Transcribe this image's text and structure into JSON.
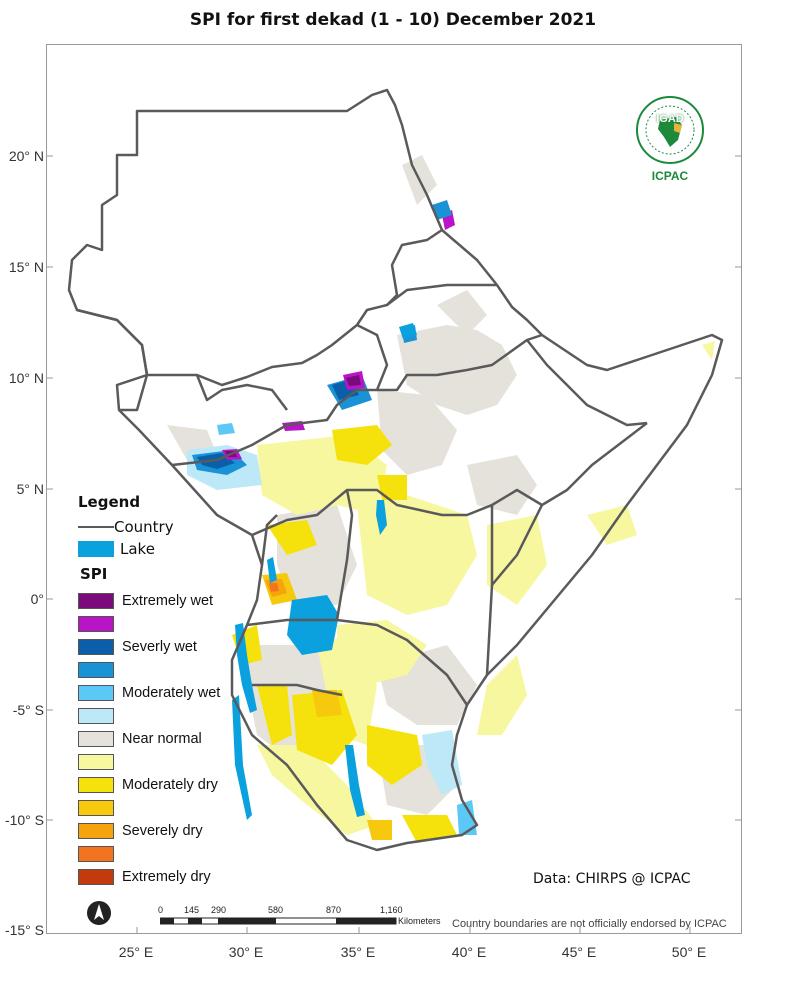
{
  "map": {
    "title": "SPI   for   first dekad (1 - 10) December 2021",
    "lat_labels": [
      "20° N",
      "15° N",
      "10° N",
      "5° N",
      "0°",
      "-5° S",
      "-10° S",
      "-15° S"
    ],
    "lon_labels": [
      "25° E",
      "30° E",
      "35° E",
      "40° E",
      "45° E",
      "50° E"
    ],
    "credit": "Data: CHIRPS @ ICPAC",
    "disclaimer": "Country boundaries are not officially endorsed by ICPAC",
    "logo": {
      "text": "IGAD",
      "org": "ICPAC"
    },
    "scale_bar": {
      "ticks": [
        "0",
        "145",
        "290",
        "580",
        "870",
        "1,160"
      ],
      "unit": "Kilometers"
    }
  },
  "legend": {
    "title": "Legend",
    "country_label": "Country",
    "lake_label": "Lake",
    "spi_title": "SPI",
    "classes": [
      {
        "label": "Extremely wet",
        "color": "#7b0a7b"
      },
      {
        "label": "",
        "color": "#b914c8"
      },
      {
        "label": "Severly wet",
        "color": "#0b5ea8"
      },
      {
        "label": "",
        "color": "#1a92d6"
      },
      {
        "label": "Moderately wet",
        "color": "#5cc8f5"
      },
      {
        "label": "",
        "color": "#bde8f8"
      },
      {
        "label": "Near normal",
        "color": "#e5e2db"
      },
      {
        "label": "",
        "color": "#f7f7a0"
      },
      {
        "label": "Moderately dry",
        "color": "#f5e20c"
      },
      {
        "label": "",
        "color": "#f6c90e"
      },
      {
        "label": "Severely dry",
        "color": "#f5a40e"
      },
      {
        "label": "",
        "color": "#f27420"
      },
      {
        "label": "Extremely dry",
        "color": "#c33a0d"
      }
    ],
    "lake_color": "#0aa1de",
    "boundary_color": "#5a5a5a"
  }
}
